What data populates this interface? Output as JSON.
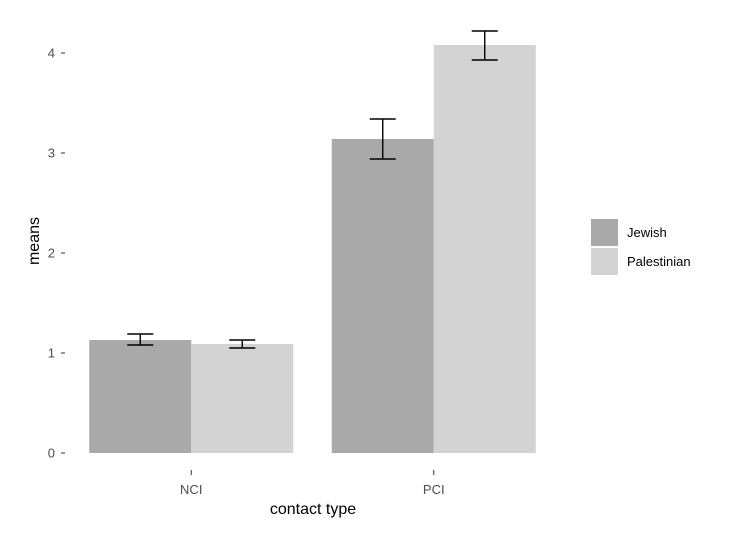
{
  "chart_data": {
    "type": "bar",
    "categories": [
      "NCI",
      "PCI"
    ],
    "series": [
      {
        "name": "Jewish",
        "color": "#a9a9a9",
        "values": [
          1.13,
          3.14
        ],
        "error_low": [
          1.08,
          2.94
        ],
        "error_high": [
          1.19,
          3.34
        ]
      },
      {
        "name": "Palestinian",
        "color": "#d3d3d3",
        "values": [
          1.09,
          4.08
        ],
        "error_low": [
          1.05,
          3.93
        ],
        "error_high": [
          1.13,
          4.22
        ]
      }
    ],
    "xlabel": "contact type",
    "ylabel": "means",
    "ylim": [
      0,
      4.22
    ],
    "yticks": [
      "0",
      "1",
      "2",
      "3",
      "4"
    ],
    "grid": false,
    "legend_position": "right"
  }
}
